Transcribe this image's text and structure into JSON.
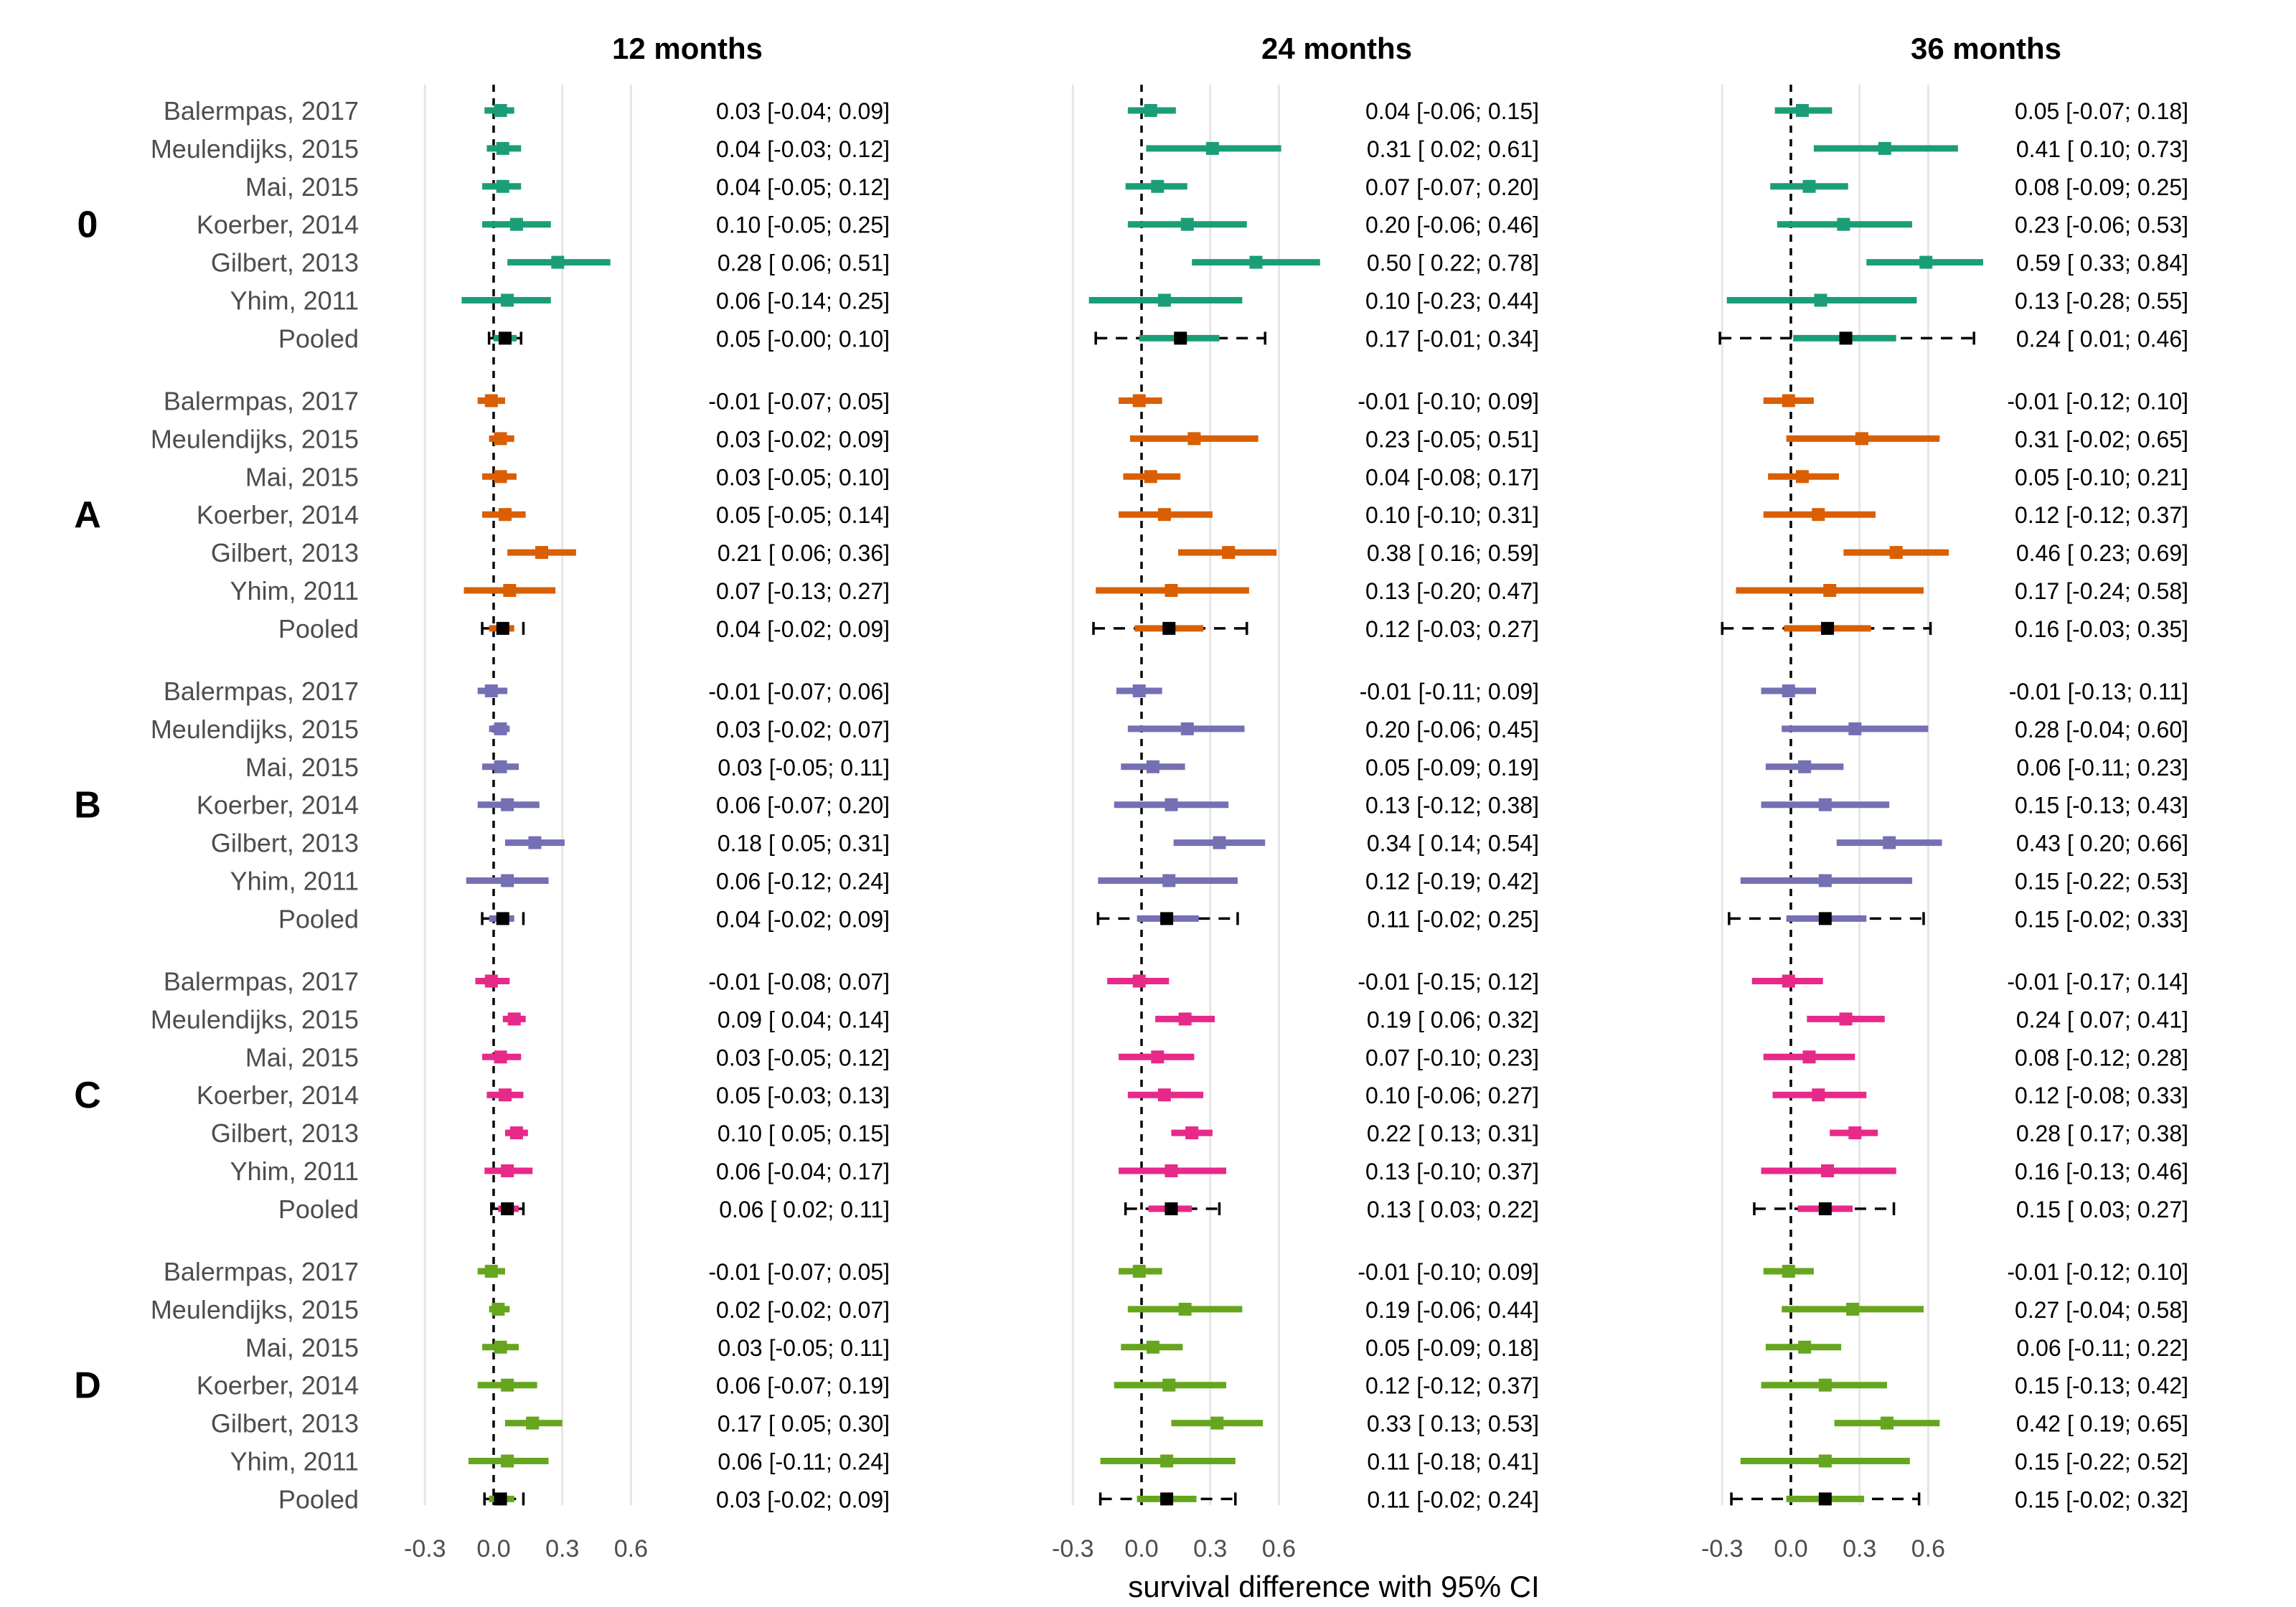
{
  "chart_data": {
    "type": "forest",
    "xlabel": "survival difference with 95% CI",
    "xlim": [
      -0.3,
      0.6
    ],
    "xticks": [
      -0.3,
      0.0,
      0.3,
      0.6
    ],
    "tick_labels": [
      "-0.3",
      "0.0",
      "0.3",
      "0.6"
    ],
    "reference_line": 0,
    "timepoints": [
      "12 months",
      "24 months",
      "36 months"
    ],
    "studies": [
      "Balermpas, 2017",
      "Meulendijks, 2015",
      "Mai, 2015",
      "Koerber, 2014",
      "Gilbert, 2013",
      "Yhim, 2011",
      "Pooled"
    ],
    "groups": [
      {
        "name": "0",
        "color": "#1b9e77",
        "panels": [
          [
            [
              0.03,
              -0.04,
              0.09
            ],
            [
              0.04,
              -0.03,
              0.12
            ],
            [
              0.04,
              -0.05,
              0.12
            ],
            [
              0.1,
              -0.05,
              0.25
            ],
            [
              0.28,
              0.06,
              0.51
            ],
            [
              0.06,
              -0.14,
              0.25
            ],
            [
              0.05,
              -0.0,
              0.1
            ]
          ],
          [
            [
              0.04,
              -0.06,
              0.15
            ],
            [
              0.31,
              0.02,
              0.61
            ],
            [
              0.07,
              -0.07,
              0.2
            ],
            [
              0.2,
              -0.06,
              0.46
            ],
            [
              0.5,
              0.22,
              0.78
            ],
            [
              0.1,
              -0.23,
              0.44
            ],
            [
              0.17,
              -0.01,
              0.34
            ]
          ],
          [
            [
              0.05,
              -0.07,
              0.18
            ],
            [
              0.41,
              0.1,
              0.73
            ],
            [
              0.08,
              -0.09,
              0.25
            ],
            [
              0.23,
              -0.06,
              0.53
            ],
            [
              0.59,
              0.33,
              0.84
            ],
            [
              0.13,
              -0.28,
              0.55
            ],
            [
              0.24,
              0.01,
              0.46
            ]
          ]
        ],
        "pi": [
          [
            -0.02,
            0.12
          ],
          [
            -0.2,
            0.54
          ],
          [
            -0.31,
            0.8
          ]
        ],
        "labels": [
          [
            "0.03 [-0.04; 0.09]",
            "0.04 [-0.03; 0.12]",
            "0.04 [-0.05; 0.12]",
            "0.10 [-0.05; 0.25]",
            "0.28 [ 0.06; 0.51]",
            "0.06 [-0.14; 0.25]",
            "0.05 [-0.00; 0.10]"
          ],
          [
            "0.04 [-0.06; 0.15]",
            "0.31 [ 0.02; 0.61]",
            "0.07 [-0.07; 0.20]",
            "0.20 [-0.06; 0.46]",
            "0.50 [ 0.22; 0.78]",
            "0.10 [-0.23; 0.44]",
            "0.17 [-0.01; 0.34]"
          ],
          [
            "0.05 [-0.07; 0.18]",
            "0.41 [ 0.10; 0.73]",
            "0.08 [-0.09; 0.25]",
            "0.23 [-0.06; 0.53]",
            "0.59 [ 0.33; 0.84]",
            "0.13 [-0.28; 0.55]",
            "0.24 [ 0.01; 0.46]"
          ]
        ]
      },
      {
        "name": "A",
        "color": "#d95f02",
        "panels": [
          [
            [
              -0.01,
              -0.07,
              0.05
            ],
            [
              0.03,
              -0.02,
              0.09
            ],
            [
              0.03,
              -0.05,
              0.1
            ],
            [
              0.05,
              -0.05,
              0.14
            ],
            [
              0.21,
              0.06,
              0.36
            ],
            [
              0.07,
              -0.13,
              0.27
            ],
            [
              0.04,
              -0.02,
              0.09
            ]
          ],
          [
            [
              -0.01,
              -0.1,
              0.09
            ],
            [
              0.23,
              -0.05,
              0.51
            ],
            [
              0.04,
              -0.08,
              0.17
            ],
            [
              0.1,
              -0.1,
              0.31
            ],
            [
              0.38,
              0.16,
              0.59
            ],
            [
              0.13,
              -0.2,
              0.47
            ],
            [
              0.12,
              -0.03,
              0.27
            ]
          ],
          [
            [
              -0.01,
              -0.12,
              0.1
            ],
            [
              0.31,
              -0.02,
              0.65
            ],
            [
              0.05,
              -0.1,
              0.21
            ],
            [
              0.12,
              -0.12,
              0.37
            ],
            [
              0.46,
              0.23,
              0.69
            ],
            [
              0.17,
              -0.24,
              0.58
            ],
            [
              0.16,
              -0.03,
              0.35
            ]
          ]
        ],
        "pi": [
          [
            -0.05,
            0.13
          ],
          [
            -0.21,
            0.46
          ],
          [
            -0.3,
            0.61
          ]
        ],
        "labels": [
          [
            "-0.01 [-0.07; 0.05]",
            "0.03 [-0.02; 0.09]",
            "0.03 [-0.05; 0.10]",
            "0.05 [-0.05; 0.14]",
            "0.21 [ 0.06; 0.36]",
            "0.07 [-0.13; 0.27]",
            "0.04 [-0.02; 0.09]"
          ],
          [
            "-0.01 [-0.10; 0.09]",
            "0.23 [-0.05; 0.51]",
            "0.04 [-0.08; 0.17]",
            "0.10 [-0.10; 0.31]",
            "0.38 [ 0.16; 0.59]",
            "0.13 [-0.20; 0.47]",
            "0.12 [-0.03; 0.27]"
          ],
          [
            "-0.01 [-0.12; 0.10]",
            "0.31 [-0.02; 0.65]",
            "0.05 [-0.10; 0.21]",
            "0.12 [-0.12; 0.37]",
            "0.46 [ 0.23; 0.69]",
            "0.17 [-0.24; 0.58]",
            "0.16 [-0.03; 0.35]"
          ]
        ]
      },
      {
        "name": "B",
        "color": "#7570b3",
        "panels": [
          [
            [
              -0.01,
              -0.07,
              0.06
            ],
            [
              0.03,
              -0.02,
              0.07
            ],
            [
              0.03,
              -0.05,
              0.11
            ],
            [
              0.06,
              -0.07,
              0.2
            ],
            [
              0.18,
              0.05,
              0.31
            ],
            [
              0.06,
              -0.12,
              0.24
            ],
            [
              0.04,
              -0.02,
              0.09
            ]
          ],
          [
            [
              -0.01,
              -0.11,
              0.09
            ],
            [
              0.2,
              -0.06,
              0.45
            ],
            [
              0.05,
              -0.09,
              0.19
            ],
            [
              0.13,
              -0.12,
              0.38
            ],
            [
              0.34,
              0.14,
              0.54
            ],
            [
              0.12,
              -0.19,
              0.42
            ],
            [
              0.11,
              -0.02,
              0.25
            ]
          ],
          [
            [
              -0.01,
              -0.13,
              0.11
            ],
            [
              0.28,
              -0.04,
              0.6
            ],
            [
              0.06,
              -0.11,
              0.23
            ],
            [
              0.15,
              -0.13,
              0.43
            ],
            [
              0.43,
              0.2,
              0.66
            ],
            [
              0.15,
              -0.22,
              0.53
            ],
            [
              0.15,
              -0.02,
              0.33
            ]
          ]
        ],
        "pi": [
          [
            -0.05,
            0.13
          ],
          [
            -0.19,
            0.42
          ],
          [
            -0.27,
            0.58
          ]
        ],
        "labels": [
          [
            "-0.01 [-0.07; 0.06]",
            "0.03 [-0.02; 0.07]",
            "0.03 [-0.05; 0.11]",
            "0.06 [-0.07; 0.20]",
            "0.18 [ 0.05; 0.31]",
            "0.06 [-0.12; 0.24]",
            "0.04 [-0.02; 0.09]"
          ],
          [
            "-0.01 [-0.11; 0.09]",
            "0.20 [-0.06; 0.45]",
            "0.05 [-0.09; 0.19]",
            "0.13 [-0.12; 0.38]",
            "0.34 [ 0.14; 0.54]",
            "0.12 [-0.19; 0.42]",
            "0.11 [-0.02; 0.25]"
          ],
          [
            "-0.01 [-0.13; 0.11]",
            "0.28 [-0.04; 0.60]",
            "0.06 [-0.11; 0.23]",
            "0.15 [-0.13; 0.43]",
            "0.43 [ 0.20; 0.66]",
            "0.15 [-0.22; 0.53]",
            "0.15 [-0.02; 0.33]"
          ]
        ]
      },
      {
        "name": "C",
        "color": "#e7298a",
        "panels": [
          [
            [
              -0.01,
              -0.08,
              0.07
            ],
            [
              0.09,
              0.04,
              0.14
            ],
            [
              0.03,
              -0.05,
              0.12
            ],
            [
              0.05,
              -0.03,
              0.13
            ],
            [
              0.1,
              0.05,
              0.15
            ],
            [
              0.06,
              -0.04,
              0.17
            ],
            [
              0.06,
              0.02,
              0.11
            ]
          ],
          [
            [
              -0.01,
              -0.15,
              0.12
            ],
            [
              0.19,
              0.06,
              0.32
            ],
            [
              0.07,
              -0.1,
              0.23
            ],
            [
              0.1,
              -0.06,
              0.27
            ],
            [
              0.22,
              0.13,
              0.31
            ],
            [
              0.13,
              -0.1,
              0.37
            ],
            [
              0.13,
              0.03,
              0.22
            ]
          ],
          [
            [
              -0.01,
              -0.17,
              0.14
            ],
            [
              0.24,
              0.07,
              0.41
            ],
            [
              0.08,
              -0.12,
              0.28
            ],
            [
              0.12,
              -0.08,
              0.33
            ],
            [
              0.28,
              0.17,
              0.38
            ],
            [
              0.16,
              -0.13,
              0.46
            ],
            [
              0.15,
              0.03,
              0.27
            ]
          ]
        ],
        "pi": [
          [
            -0.01,
            0.13
          ],
          [
            -0.07,
            0.34
          ],
          [
            -0.16,
            0.45
          ]
        ],
        "labels": [
          [
            "-0.01 [-0.08; 0.07]",
            "0.09 [ 0.04; 0.14]",
            "0.03 [-0.05; 0.12]",
            "0.05 [-0.03; 0.13]",
            "0.10 [ 0.05; 0.15]",
            "0.06 [-0.04; 0.17]",
            "0.06 [ 0.02; 0.11]"
          ],
          [
            "-0.01 [-0.15; 0.12]",
            "0.19 [ 0.06; 0.32]",
            "0.07 [-0.10; 0.23]",
            "0.10 [-0.06; 0.27]",
            "0.22 [ 0.13; 0.31]",
            "0.13 [-0.10; 0.37]",
            "0.13 [ 0.03; 0.22]"
          ],
          [
            "-0.01 [-0.17; 0.14]",
            "0.24 [ 0.07; 0.41]",
            "0.08 [-0.12; 0.28]",
            "0.12 [-0.08; 0.33]",
            "0.28 [ 0.17; 0.38]",
            "0.16 [-0.13; 0.46]",
            "0.15 [ 0.03; 0.27]"
          ]
        ]
      },
      {
        "name": "D",
        "color": "#66a61e",
        "panels": [
          [
            [
              -0.01,
              -0.07,
              0.05
            ],
            [
              0.02,
              -0.02,
              0.07
            ],
            [
              0.03,
              -0.05,
              0.11
            ],
            [
              0.06,
              -0.07,
              0.19
            ],
            [
              0.17,
              0.05,
              0.3
            ],
            [
              0.06,
              -0.11,
              0.24
            ],
            [
              0.03,
              -0.02,
              0.09
            ]
          ],
          [
            [
              -0.01,
              -0.1,
              0.09
            ],
            [
              0.19,
              -0.06,
              0.44
            ],
            [
              0.05,
              -0.09,
              0.18
            ],
            [
              0.12,
              -0.12,
              0.37
            ],
            [
              0.33,
              0.13,
              0.53
            ],
            [
              0.11,
              -0.18,
              0.41
            ],
            [
              0.11,
              -0.02,
              0.24
            ]
          ],
          [
            [
              -0.01,
              -0.12,
              0.1
            ],
            [
              0.27,
              -0.04,
              0.58
            ],
            [
              0.06,
              -0.11,
              0.22
            ],
            [
              0.15,
              -0.13,
              0.42
            ],
            [
              0.42,
              0.19,
              0.65
            ],
            [
              0.15,
              -0.22,
              0.52
            ],
            [
              0.15,
              -0.02,
              0.32
            ]
          ]
        ],
        "pi": [
          [
            -0.04,
            0.13
          ],
          [
            -0.18,
            0.41
          ],
          [
            -0.26,
            0.56
          ]
        ],
        "labels": [
          [
            "-0.01 [-0.07; 0.05]",
            "0.02 [-0.02; 0.07]",
            "0.03 [-0.05; 0.11]",
            "0.06 [-0.07; 0.19]",
            "0.17 [ 0.05; 0.30]",
            "0.06 [-0.11; 0.24]",
            "0.03 [-0.02; 0.09]"
          ],
          [
            "-0.01 [-0.10; 0.09]",
            "0.19 [-0.06; 0.44]",
            "0.05 [-0.09; 0.18]",
            "0.12 [-0.12; 0.37]",
            "0.33 [ 0.13; 0.53]",
            "0.11 [-0.18; 0.41]",
            "0.11 [-0.02; 0.24]"
          ],
          [
            "-0.01 [-0.12; 0.10]",
            "0.27 [-0.04; 0.58]",
            "0.06 [-0.11; 0.22]",
            "0.15 [-0.13; 0.42]",
            "0.42 [ 0.19; 0.65]",
            "0.15 [-0.22; 0.52]",
            "0.15 [-0.02; 0.32]"
          ]
        ]
      }
    ]
  }
}
